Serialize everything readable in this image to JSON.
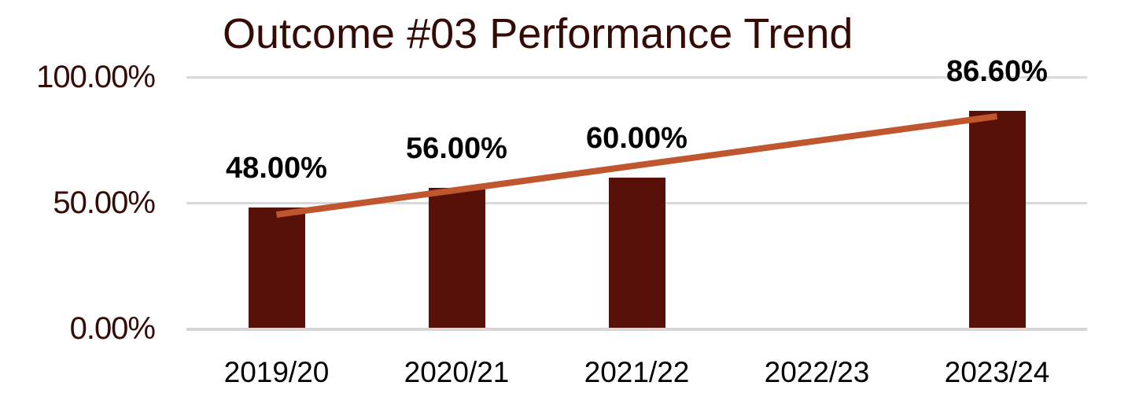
{
  "chart_data": {
    "type": "bar",
    "title": "Outcome #03 Performance Trend",
    "categories": [
      "2019/20",
      "2020/21",
      "2021/22",
      "2022/23",
      "2023/24"
    ],
    "series": [
      {
        "name": "Performance",
        "type": "bar",
        "color": "#581109",
        "values": [
          48,
          56,
          60,
          null,
          86.6
        ],
        "labels": [
          "48.00%",
          "56.00%",
          "60.00%",
          null,
          "86.60%"
        ]
      },
      {
        "name": "Linear trendline",
        "type": "line",
        "color": "#C0562D",
        "start": {
          "category_index": 0,
          "value": 45.3
        },
        "end": {
          "category_index": 4,
          "value": 84.4
        }
      }
    ],
    "y_axis": {
      "min": 0,
      "max": 100,
      "ticks": [
        {
          "label": "0.00%",
          "value": 0
        },
        {
          "label": "50.00%",
          "value": 50
        },
        {
          "label": "100.00%",
          "value": 100
        }
      ]
    },
    "x_axis": {
      "label": ""
    },
    "grid": true,
    "legend_position": "none",
    "colors": {
      "grid": "#D9D9D9",
      "axis_text": "#350B06",
      "data_label": "#000000",
      "background": "#ffffff"
    }
  }
}
